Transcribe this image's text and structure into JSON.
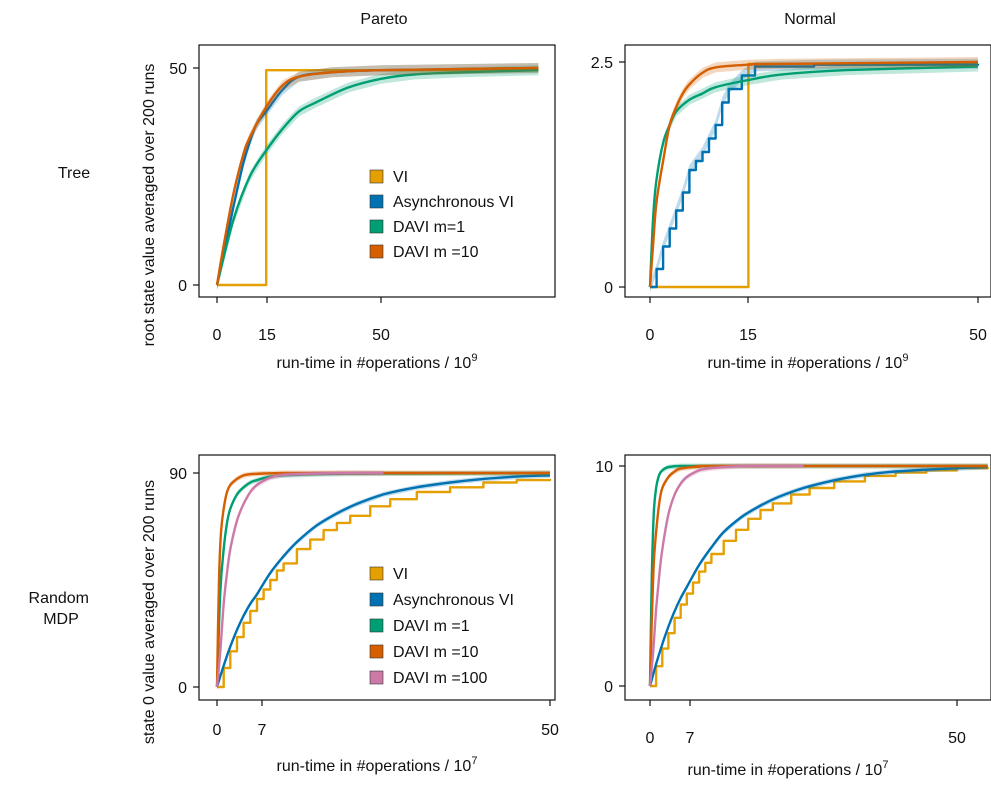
{
  "columns": [
    "Pareto",
    "Normal"
  ],
  "rows": [
    "Tree",
    "Random MDP"
  ],
  "colors": {
    "VI": "#e69f00",
    "Asynchronous VI": "#0072b2",
    "DAVI m=1": "#009e73",
    "DAVI m=10": "#d55e00",
    "DAVI m=100": "#cc79a7"
  },
  "chart_data": [
    {
      "type": "line",
      "panel": "Tree / Pareto",
      "ylabel": "root state value averaged over 200 runs",
      "xlabel": "run-time in #operations / 10",
      "xlabel_exp": "9",
      "xticks": [
        0,
        15,
        50
      ],
      "yticks": [
        0,
        50
      ],
      "xlim": [
        0,
        98
      ],
      "ylim": [
        0,
        51
      ],
      "legend": [
        "VI",
        "Asynchronous VI",
        "DAVI m=1",
        "DAVI m =10"
      ],
      "legend_position": "center-right",
      "series": [
        {
          "name": "VI",
          "x": [
            0,
            15,
            15,
            98
          ],
          "y": [
            0,
            0,
            49.5,
            49.5
          ]
        },
        {
          "name": "Asynchronous VI",
          "x": [
            0,
            2,
            5,
            8,
            10,
            12,
            15,
            20,
            25,
            35,
            50,
            98
          ],
          "y": [
            0,
            7,
            18,
            28,
            33,
            37,
            40,
            45,
            48,
            49,
            49.5,
            50
          ]
        },
        {
          "name": "DAVI m=1",
          "x": [
            0,
            5,
            10,
            15,
            20,
            25,
            30,
            40,
            50,
            60,
            75,
            98
          ],
          "y": [
            0,
            15,
            25,
            31,
            36,
            40,
            42,
            45.5,
            47.5,
            48.5,
            49,
            49.5
          ]
        },
        {
          "name": "DAVI m =10",
          "x": [
            0,
            2,
            5,
            8,
            10,
            15,
            20,
            25,
            35,
            50,
            98
          ],
          "y": [
            0,
            9,
            21,
            30,
            34,
            41,
            46,
            48,
            49,
            49.5,
            50
          ]
        }
      ]
    },
    {
      "type": "line",
      "panel": "Normal / Tree",
      "xlabel": "run-time in #operations / 10",
      "xlabel_exp": "9",
      "xticks": [
        0,
        15,
        50
      ],
      "yticks": [
        0,
        2.5
      ],
      "xlim": [
        0,
        50
      ],
      "ylim": [
        0,
        2.55
      ],
      "series": [
        {
          "name": "VI",
          "x": [
            0,
            15,
            15,
            50
          ],
          "y": [
            0,
            0,
            2.48,
            2.48
          ]
        },
        {
          "name": "Asynchronous VI",
          "x": [
            0,
            1,
            2,
            3,
            4,
            5,
            6,
            7,
            8,
            9,
            10,
            11,
            12,
            14,
            16,
            25,
            50
          ],
          "y": [
            0,
            0.2,
            0.45,
            0.65,
            0.85,
            1.05,
            1.3,
            1.4,
            1.5,
            1.65,
            1.8,
            2.05,
            2.2,
            2.35,
            2.45,
            2.47,
            2.48
          ]
        },
        {
          "name": "DAVI m=1",
          "x": [
            0,
            0.5,
            1,
            2,
            3,
            4,
            6,
            8,
            10,
            15,
            20,
            30,
            50
          ],
          "y": [
            0,
            0.8,
            1.2,
            1.6,
            1.8,
            1.95,
            2.08,
            2.15,
            2.22,
            2.3,
            2.36,
            2.41,
            2.45
          ]
        },
        {
          "name": "DAVI m =10",
          "x": [
            0,
            0.5,
            1,
            2,
            3,
            4,
            5,
            6,
            8,
            10,
            15,
            20,
            50
          ],
          "y": [
            0,
            0.5,
            0.95,
            1.4,
            1.8,
            2.0,
            2.15,
            2.25,
            2.38,
            2.44,
            2.47,
            2.48,
            2.5
          ]
        }
      ]
    },
    {
      "type": "line",
      "panel": "Random MDP / Pareto",
      "ylabel": "state 0 value averaged over 200 runs",
      "xlabel": "run-time in #operations / 10",
      "xlabel_exp": "7",
      "xticks": [
        0,
        7,
        50
      ],
      "yticks": [
        0,
        90
      ],
      "xlim": [
        -0.5,
        50.5
      ],
      "ylim": [
        0,
        92
      ],
      "legend": [
        "VI",
        "Asynchronous VI",
        "DAVI m =1",
        "DAVI m =10",
        "DAVI m =100"
      ],
      "legend_position": "lower-right",
      "series": [
        {
          "name": "VI",
          "x": [
            0,
            1,
            2,
            3,
            4,
            5,
            6,
            7,
            8,
            9,
            10,
            12,
            14,
            16,
            18,
            20,
            23,
            26,
            30,
            35,
            40,
            45,
            50
          ],
          "y": [
            0,
            8,
            15,
            21,
            27,
            32,
            37,
            41,
            45,
            49,
            52,
            58,
            62,
            66,
            69,
            72,
            76,
            79,
            82,
            84,
            86,
            87,
            87.5
          ]
        },
        {
          "name": "Asynchronous VI",
          "x": [
            0,
            1,
            2,
            3,
            4,
            5,
            6,
            8,
            10,
            12,
            15,
            18,
            21,
            25,
            30,
            35,
            40,
            45,
            50
          ],
          "y": [
            0,
            9,
            17,
            24,
            30,
            35,
            39,
            48,
            55,
            61,
            68,
            73,
            77,
            81,
            84,
            86,
            87.5,
            88.5,
            89
          ]
        },
        {
          "name": "DAVI m =1",
          "x": [
            0,
            0.5,
            1,
            1.5,
            2,
            3,
            4,
            5,
            6,
            8,
            10,
            15,
            20,
            30,
            50
          ],
          "y": [
            0,
            40,
            58,
            69,
            75,
            81,
            84,
            86,
            87,
            88.5,
            89,
            89.5,
            89.7,
            89.8,
            90
          ]
        },
        {
          "name": "DAVI m =10",
          "x": [
            0,
            0.3,
            0.6,
            1,
            1.5,
            2,
            3,
            4,
            5,
            7,
            10,
            15,
            50
          ],
          "y": [
            0,
            45,
            65,
            75,
            82,
            85,
            87.5,
            89,
            89.5,
            89.8,
            90,
            90,
            90
          ]
        },
        {
          "name": "DAVI m =100",
          "x": [
            0,
            0.5,
            1,
            1.5,
            2,
            3,
            4,
            5,
            6,
            8,
            10,
            15,
            20,
            25
          ],
          "y": [
            0,
            15,
            35,
            48,
            58,
            70,
            77,
            82,
            85,
            88,
            89.2,
            89.8,
            90,
            90
          ]
        }
      ]
    },
    {
      "type": "line",
      "panel": "Random MDP / Normal",
      "xlabel": "run-time in #operations /  10",
      "xlabel_exp": "7",
      "xticks": [
        0,
        7,
        50
      ],
      "yticks": [
        0,
        10
      ],
      "xlim": [
        -0.5,
        55.5
      ],
      "ylim": [
        0,
        10.3
      ],
      "series": [
        {
          "name": "VI",
          "x": [
            0,
            1,
            2,
            3,
            4,
            5,
            6,
            7,
            8,
            9,
            10,
            12,
            14,
            16,
            18,
            20,
            23,
            26,
            30,
            35,
            40,
            45,
            50,
            55
          ],
          "y": [
            0,
            0.9,
            1.7,
            2.4,
            3.1,
            3.7,
            4.2,
            4.7,
            5.2,
            5.6,
            6.0,
            6.6,
            7.1,
            7.6,
            8.0,
            8.3,
            8.7,
            9.0,
            9.3,
            9.55,
            9.7,
            9.8,
            9.9,
            9.95
          ]
        },
        {
          "name": "Asynchronous VI",
          "x": [
            0,
            1,
            2,
            3,
            4,
            5,
            6,
            8,
            10,
            12,
            15,
            18,
            21,
            25,
            30,
            35,
            40,
            50,
            55
          ],
          "y": [
            0,
            1.0,
            1.9,
            2.7,
            3.4,
            4.0,
            4.5,
            5.5,
            6.3,
            7.0,
            7.7,
            8.2,
            8.6,
            9.0,
            9.35,
            9.6,
            9.75,
            9.9,
            9.95
          ]
        },
        {
          "name": "DAVI m =1",
          "x": [
            0,
            0.3,
            0.6,
            1,
            1.5,
            2,
            3,
            5,
            10,
            55
          ],
          "y": [
            0,
            5,
            7.8,
            9.0,
            9.6,
            9.8,
            9.95,
            10,
            10,
            10
          ]
        },
        {
          "name": "DAVI m =10",
          "x": [
            0,
            0.3,
            0.6,
            1,
            1.5,
            2,
            3,
            4,
            5,
            8,
            12,
            55
          ],
          "y": [
            0,
            3,
            5.5,
            7,
            8.3,
            9.0,
            9.5,
            9.75,
            9.88,
            9.97,
            10,
            10
          ]
        },
        {
          "name": "DAVI m =100",
          "x": [
            0,
            0.5,
            1,
            1.5,
            2,
            3,
            4,
            5,
            6,
            8,
            10,
            15,
            20,
            25
          ],
          "y": [
            0,
            1.5,
            3.5,
            5.0,
            6.2,
            7.8,
            8.7,
            9.2,
            9.5,
            9.8,
            9.9,
            10,
            10,
            10
          ]
        }
      ]
    }
  ]
}
